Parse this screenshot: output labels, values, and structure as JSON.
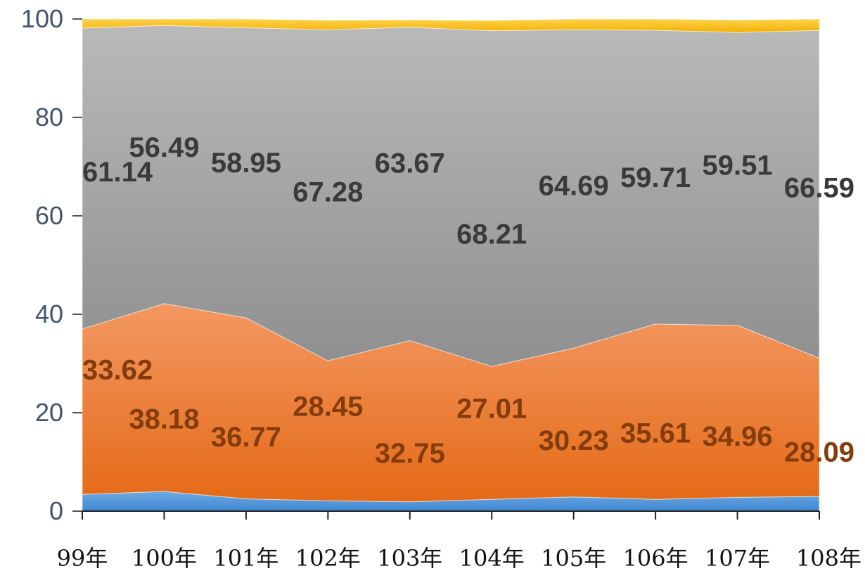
{
  "chart_data": {
    "type": "area",
    "stacked": true,
    "categories": [
      "99年",
      "100年",
      "101年",
      "102年",
      "103年",
      "104年",
      "105年",
      "106年",
      "107年",
      "108年"
    ],
    "ylim": [
      0,
      100
    ],
    "yticks": [
      0,
      20,
      40,
      60,
      80,
      100
    ],
    "series": [
      {
        "values": [
          3.4,
          4.0,
          2.5,
          2.1,
          1.9,
          2.4,
          2.9,
          2.4,
          2.8,
          3.0
        ],
        "color": "#5b9bd5",
        "show_labels": false
      },
      {
        "values": [
          33.62,
          38.18,
          36.77,
          28.45,
          32.75,
          27.01,
          30.23,
          35.61,
          34.96,
          28.09
        ],
        "color": "#ed7d31",
        "show_labels": true
      },
      {
        "values": [
          61.14,
          56.49,
          58.95,
          67.28,
          63.67,
          68.21,
          64.69,
          59.71,
          59.51,
          66.59
        ],
        "color": "#a5a5a5",
        "show_labels": true
      },
      {
        "values": [
          1.84,
          1.33,
          1.78,
          1.92,
          1.48,
          2.08,
          2.18,
          2.28,
          2.53,
          2.32
        ],
        "color": "#ffc000",
        "show_labels": false
      }
    ],
    "grid": false,
    "legend": "none"
  }
}
